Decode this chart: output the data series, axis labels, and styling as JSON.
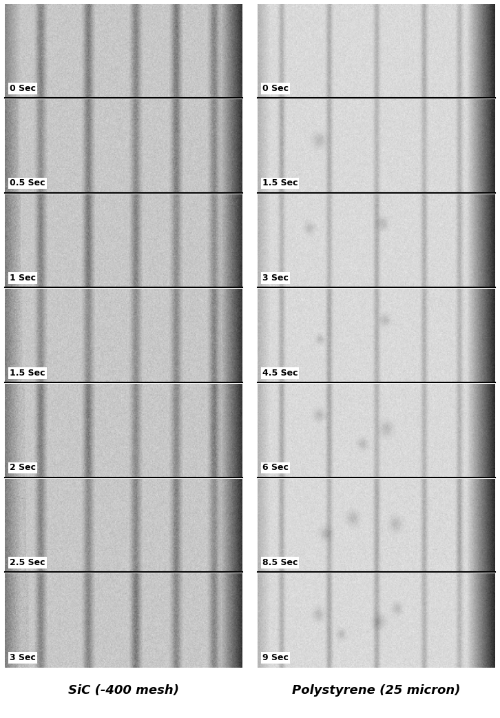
{
  "left_labels": [
    "0 Sec",
    "0.5 Sec",
    "1 Sec",
    "1.5 Sec",
    "2 Sec",
    "2.5 Sec",
    "3 Sec"
  ],
  "right_labels": [
    "0 Sec",
    "1.5 Sec",
    "3 Sec",
    "4.5 Sec",
    "6 Sec",
    "8.5 Sec",
    "9 Sec"
  ],
  "left_title": "SiC (-400 mesh)",
  "right_title": "Polystyrene (25 micron)",
  "n_rows": 7,
  "label_fontsize": 9,
  "title_fontsize": 13,
  "label_bg_color": "#ffffff",
  "label_text_color": "#000000",
  "title_color": "#000000"
}
